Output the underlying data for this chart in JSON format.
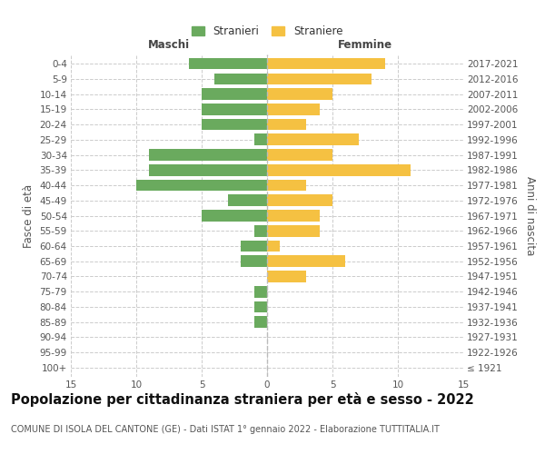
{
  "age_groups": [
    "100+",
    "95-99",
    "90-94",
    "85-89",
    "80-84",
    "75-79",
    "70-74",
    "65-69",
    "60-64",
    "55-59",
    "50-54",
    "45-49",
    "40-44",
    "35-39",
    "30-34",
    "25-29",
    "20-24",
    "15-19",
    "10-14",
    "5-9",
    "0-4"
  ],
  "birth_years": [
    "≤ 1921",
    "1922-1926",
    "1927-1931",
    "1932-1936",
    "1937-1941",
    "1942-1946",
    "1947-1951",
    "1952-1956",
    "1957-1961",
    "1962-1966",
    "1967-1971",
    "1972-1976",
    "1977-1981",
    "1982-1986",
    "1987-1991",
    "1992-1996",
    "1997-2001",
    "2002-2006",
    "2007-2011",
    "2012-2016",
    "2017-2021"
  ],
  "males": [
    0,
    0,
    0,
    1,
    1,
    1,
    0,
    2,
    2,
    1,
    5,
    3,
    10,
    9,
    9,
    1,
    5,
    5,
    5,
    4,
    6
  ],
  "females": [
    0,
    0,
    0,
    0,
    0,
    0,
    3,
    6,
    1,
    4,
    4,
    5,
    3,
    11,
    5,
    7,
    3,
    4,
    5,
    8,
    9
  ],
  "male_color": "#6aaa5e",
  "female_color": "#f5c142",
  "background_color": "#ffffff",
  "grid_color": "#cccccc",
  "title": "Popolazione per cittadinanza straniera per età e sesso - 2022",
  "subtitle": "COMUNE DI ISOLA DEL CANTONE (GE) - Dati ISTAT 1° gennaio 2022 - Elaborazione TUTTITALIA.IT",
  "left_label": "Maschi",
  "right_label": "Femmine",
  "ylabel": "Fasce di età",
  "y2label": "Anni di nascita",
  "legend_male": "Stranieri",
  "legend_female": "Straniere",
  "xlim": 15,
  "title_fontsize": 10.5,
  "subtitle_fontsize": 7.0,
  "tick_fontsize": 7.5,
  "label_fontsize": 8.5
}
